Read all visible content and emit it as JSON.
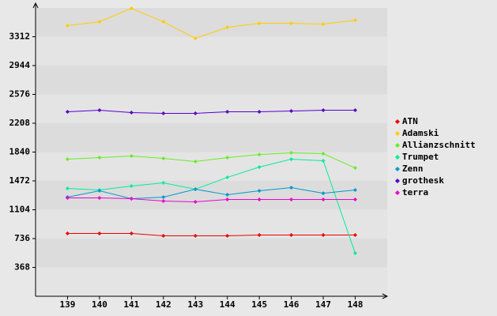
{
  "chart_data": {
    "type": "line",
    "categories": [
      "139",
      "140",
      "141",
      "142",
      "143",
      "144",
      "145",
      "146",
      "147",
      "148"
    ],
    "ylim": [
      0,
      3680
    ],
    "yticks": [
      368,
      736,
      1104,
      1472,
      1840,
      2208,
      2576,
      2944,
      3312
    ],
    "series": [
      {
        "name": "ATN",
        "color": "#ee0000",
        "values": [
          801,
          801,
          801,
          771,
          771,
          771,
          781,
          781,
          781,
          781
        ]
      },
      {
        "name": "Adamski",
        "color": "#ffcc00",
        "values": [
          3453,
          3503,
          3674,
          3503,
          3291,
          3432,
          3483,
          3483,
          3473,
          3523
        ]
      },
      {
        "name": "Allianzschnitt",
        "color": "#66ee22",
        "values": [
          1749,
          1769,
          1789,
          1759,
          1719,
          1769,
          1809,
          1830,
          1820,
          1638
        ]
      },
      {
        "name": "Trumpet",
        "color": "#00ee99",
        "values": [
          1376,
          1356,
          1406,
          1447,
          1366,
          1517,
          1648,
          1749,
          1729,
          549
        ]
      },
      {
        "name": "Zenn",
        "color": "#0099cc",
        "values": [
          1265,
          1346,
          1245,
          1265,
          1366,
          1295,
          1346,
          1386,
          1315,
          1356
        ]
      },
      {
        "name": "grothesk",
        "color": "#5500cc",
        "values": [
          2354,
          2374,
          2344,
          2334,
          2334,
          2354,
          2354,
          2364,
          2374,
          2374
        ]
      },
      {
        "name": "terra",
        "color": "#ee00cc",
        "values": [
          1255,
          1255,
          1245,
          1215,
          1205,
          1235,
          1235,
          1235,
          1235,
          1235
        ]
      }
    ]
  }
}
